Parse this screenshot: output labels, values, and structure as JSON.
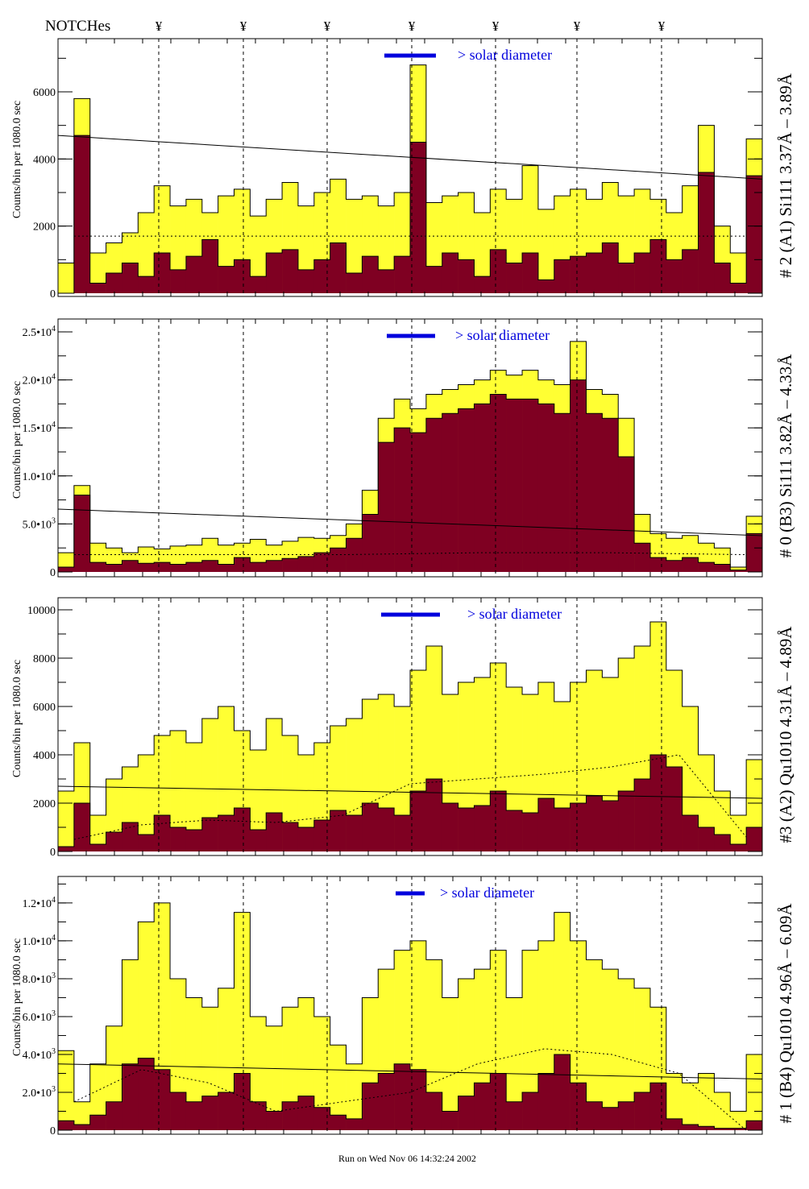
{
  "header": {
    "notches_label": "NOTCHes",
    "notch_symbol": "¥"
  },
  "footer": {
    "run_text": "Run on Wed Nov 06 14:32:24 2002"
  },
  "colors": {
    "total": "#ffff33",
    "subset": "#7f0022",
    "marker": "#0000dd",
    "axis": "#000000"
  },
  "chart_data": [
    {
      "type": "bar",
      "title": "# 2 (A1) Si111  3.37Å – 3.89Å",
      "ylabel": "Counts/bin per   1080.0 sec",
      "legend": "> solar diameter",
      "ylim": [
        0,
        7584
      ],
      "yticks": [
        {
          "v": 0,
          "m": "0",
          "e": ""
        },
        {
          "v": 2000,
          "m": "2000",
          "e": ""
        },
        {
          "v": 4000,
          "m": "4000",
          "e": ""
        },
        {
          "v": 6000,
          "m": "6000",
          "e": ""
        }
      ],
      "yminor": 1000,
      "series": [
        {
          "name": "total",
          "values": [
            900,
            5800,
            1200,
            1500,
            1800,
            2400,
            3200,
            2600,
            2800,
            2400,
            2900,
            3100,
            2300,
            2800,
            3300,
            2600,
            3000,
            3400,
            2800,
            2900,
            2600,
            3000,
            6800,
            2700,
            2900,
            3000,
            2400,
            3100,
            2800,
            3800,
            2500,
            2900,
            3100,
            2800,
            3300,
            2900,
            3100,
            2800,
            2400,
            3200,
            5000,
            2000,
            1200,
            4600
          ]
        },
        {
          "name": "subset",
          "values": [
            0,
            4700,
            300,
            600,
            900,
            500,
            1200,
            700,
            1100,
            1600,
            800,
            1000,
            500,
            1200,
            1300,
            700,
            1000,
            1500,
            600,
            1100,
            700,
            1100,
            4500,
            800,
            1200,
            1000,
            500,
            1300,
            900,
            1200,
            400,
            1000,
            1100,
            1200,
            1500,
            900,
            1200,
            1600,
            1000,
            1300,
            3600,
            900,
            300,
            3500
          ]
        }
      ],
      "fit_line": [
        4700,
        3400
      ],
      "dashed_curve": [
        1700,
        1700,
        1700,
        1700,
        1700,
        1700,
        1700,
        1700,
        1700,
        1700,
        1700
      ]
    },
    {
      "type": "bar",
      "title": "# 0 (B3) Si111  3.82Å – 4.33Å",
      "ylabel": "Counts/bin per   1080.0 sec",
      "legend": "> solar diameter",
      "ylim": [
        0,
        26340
      ],
      "yticks": [
        {
          "v": 0,
          "m": "0",
          "e": ""
        },
        {
          "v": 5000,
          "m": "5.0•10",
          "e": "3"
        },
        {
          "v": 10000,
          "m": "1.0•10",
          "e": "4"
        },
        {
          "v": 15000,
          "m": "1.5•10",
          "e": "4"
        },
        {
          "v": 20000,
          "m": "2.0•10",
          "e": "4"
        },
        {
          "v": 25000,
          "m": "2.5•10",
          "e": "4"
        }
      ],
      "yminor": 2500,
      "series": [
        {
          "name": "total",
          "values": [
            2000,
            9000,
            3000,
            2500,
            2000,
            2600,
            2400,
            2700,
            2800,
            3500,
            2800,
            3000,
            3400,
            2800,
            3200,
            3600,
            3500,
            3800,
            5000,
            8500,
            16000,
            18000,
            17000,
            18500,
            19000,
            19500,
            20000,
            21000,
            20500,
            21000,
            20000,
            19500,
            24000,
            19000,
            18500,
            16000,
            6000,
            4000,
            3500,
            3800,
            3000,
            2500,
            500,
            5800
          ]
        },
        {
          "name": "subset",
          "values": [
            500,
            8000,
            1000,
            800,
            1200,
            900,
            1000,
            800,
            1000,
            1200,
            800,
            1500,
            1000,
            1200,
            1400,
            1600,
            2000,
            2500,
            3500,
            6000,
            13500,
            15000,
            14500,
            16000,
            16500,
            17000,
            17500,
            18500,
            18000,
            18000,
            17500,
            16500,
            20000,
            16500,
            16000,
            12000,
            3000,
            1500,
            1200,
            1500,
            1000,
            800,
            200,
            4000
          ]
        }
      ],
      "fit_line": [
        6540,
        3775
      ],
      "dashed_curve": [
        1800,
        1800,
        1800,
        1800,
        1800,
        1900,
        2000,
        2000,
        2000,
        1900,
        1800
      ]
    },
    {
      "type": "bar",
      "title": "#3 (A2) Qu1010  4.31Å – 4.89Å",
      "ylabel": "Counts/bin per   1080.0 sec",
      "legend": "> solar diameter",
      "ylim": [
        0,
        10500
      ],
      "yticks": [
        {
          "v": 0,
          "m": "0",
          "e": ""
        },
        {
          "v": 2000,
          "m": "2000",
          "e": ""
        },
        {
          "v": 4000,
          "m": "4000",
          "e": ""
        },
        {
          "v": 6000,
          "m": "6000",
          "e": ""
        },
        {
          "v": 8000,
          "m": "8000",
          "e": ""
        },
        {
          "v": 10000,
          "m": "10000",
          "e": ""
        }
      ],
      "yminor": 1000,
      "series": [
        {
          "name": "total",
          "values": [
            2500,
            4500,
            1500,
            3000,
            3500,
            4000,
            4800,
            5000,
            4500,
            5500,
            6000,
            5000,
            4200,
            5500,
            4800,
            4000,
            4500,
            5200,
            5500,
            6300,
            6500,
            6000,
            7500,
            8500,
            6500,
            7000,
            7200,
            7800,
            6800,
            6500,
            7000,
            6200,
            7000,
            7500,
            7200,
            8000,
            8500,
            9500,
            7500,
            6000,
            4000,
            2500,
            1500,
            3800
          ]
        },
        {
          "name": "subset",
          "values": [
            200,
            2000,
            300,
            800,
            1200,
            700,
            1500,
            1000,
            900,
            1400,
            1500,
            1800,
            900,
            1600,
            1200,
            1000,
            1300,
            1700,
            1500,
            2000,
            1800,
            1500,
            2500,
            3000,
            2000,
            1800,
            1900,
            2500,
            1700,
            1600,
            2200,
            1800,
            2000,
            2300,
            2100,
            2500,
            3000,
            4000,
            3500,
            1500,
            1000,
            700,
            300,
            1000
          ]
        }
      ],
      "fit_line": [
        2700,
        2200
      ],
      "dashed_curve": [
        500,
        1100,
        1300,
        1200,
        1500,
        2800,
        3000,
        3200,
        3500,
        4000,
        600
      ]
    },
    {
      "type": "bar",
      "title": "# 1 (B4) Qu1010  4.96Å – 6.09Å",
      "ylabel": "Counts/bin per   1080.0 sec",
      "legend": "> solar diameter",
      "ylim": [
        0,
        13400
      ],
      "yticks": [
        {
          "v": 0,
          "m": "0",
          "e": ""
        },
        {
          "v": 2000,
          "m": "2.0•10",
          "e": "3"
        },
        {
          "v": 4000,
          "m": "4.0•10",
          "e": "3"
        },
        {
          "v": 6000,
          "m": "6.0•10",
          "e": "3"
        },
        {
          "v": 8000,
          "m": "8.0•10",
          "e": "3"
        },
        {
          "v": 10000,
          "m": "1.0•10",
          "e": "4"
        },
        {
          "v": 12000,
          "m": "1.2•10",
          "e": "4"
        }
      ],
      "yminor": 1000,
      "series": [
        {
          "name": "total",
          "values": [
            4200,
            1500,
            3500,
            5500,
            9000,
            11000,
            12000,
            8000,
            7000,
            6500,
            7500,
            11500,
            6000,
            5500,
            6500,
            7000,
            6000,
            4500,
            3500,
            7000,
            8500,
            9500,
            10000,
            9000,
            7000,
            8000,
            8500,
            9500,
            7000,
            9500,
            10000,
            11500,
            10000,
            9000,
            8500,
            8000,
            7500,
            6500,
            3000,
            2500,
            3000,
            2000,
            1000,
            4000
          ]
        },
        {
          "name": "subset",
          "values": [
            500,
            300,
            800,
            1500,
            3500,
            3800,
            3200,
            2000,
            1500,
            1800,
            2000,
            3000,
            1500,
            1000,
            1500,
            1800,
            1200,
            800,
            600,
            2500,
            3000,
            3500,
            3200,
            2000,
            1000,
            1800,
            2500,
            3000,
            1500,
            2000,
            3000,
            4000,
            2500,
            1500,
            1200,
            1500,
            2000,
            2500,
            600,
            300,
            200,
            100,
            100,
            500
          ]
        }
      ],
      "fit_line": [
        3500,
        2700
      ],
      "dashed_curve": [
        1500,
        3200,
        2500,
        1000,
        1500,
        2000,
        3500,
        4300,
        4000,
        3000,
        0
      ]
    }
  ]
}
